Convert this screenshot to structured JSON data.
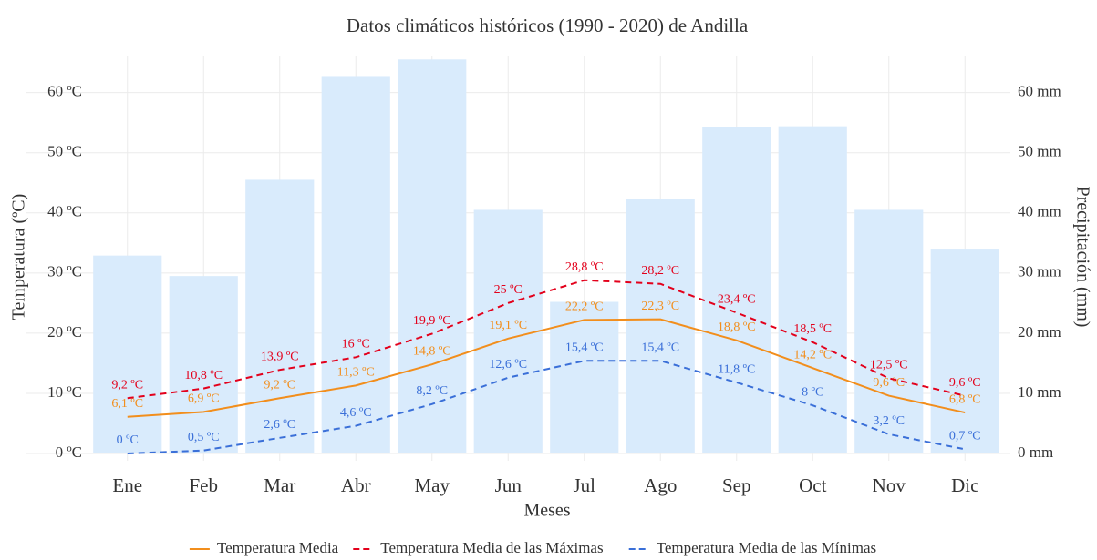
{
  "chart_data": {
    "type": "line",
    "title": "Datos climáticos históricos (1990 - 2020) de Andilla",
    "x_label": "Meses",
    "y_label": "Temperatura (ºC)",
    "y2_label": "Precipitación (mm)",
    "categories": [
      "Ene",
      "Feb",
      "Mar",
      "Abr",
      "May",
      "Jun",
      "Jul",
      "Ago",
      "Sep",
      "Oct",
      "Nov",
      "Dic"
    ],
    "ylim": [
      0,
      66
    ],
    "yticks": [
      {
        "value": 0,
        "label": "0 ºC"
      },
      {
        "value": 10,
        "label": "10 ºC"
      },
      {
        "value": 20,
        "label": "20 ºC"
      },
      {
        "value": 30,
        "label": "30 ºC"
      },
      {
        "value": 40,
        "label": "40 ºC"
      },
      {
        "value": 50,
        "label": "50 ºC"
      },
      {
        "value": 60,
        "label": "60 ºC"
      }
    ],
    "y2lim": [
      0,
      66
    ],
    "y2ticks": [
      {
        "value": 0,
        "label": "0 mm"
      },
      {
        "value": 10,
        "label": "10 mm"
      },
      {
        "value": 20,
        "label": "20 mm"
      },
      {
        "value": 30,
        "label": "30 mm"
      },
      {
        "value": 40,
        "label": "40 mm"
      },
      {
        "value": 50,
        "label": "50 mm"
      },
      {
        "value": 60,
        "label": "60 mm"
      }
    ],
    "grid": true,
    "legend": "bottom",
    "bars": {
      "type": "bar",
      "axis": "y2",
      "color": "#d9ebfc",
      "values": [
        32.9,
        29.5,
        45.5,
        62.6,
        65.5,
        40.5,
        25.2,
        42.3,
        54.2,
        54.4,
        40.5,
        33.9
      ]
    },
    "series": [
      {
        "name": "Temperatura Media",
        "color": "#f28e1c",
        "dash": false,
        "values": [
          6.1,
          6.9,
          9.2,
          11.3,
          14.8,
          19.1,
          22.2,
          22.3,
          18.8,
          14.2,
          9.6,
          6.8
        ],
        "value_labels": [
          "6,1 ºC",
          "6,9 ºC",
          "9,2 ºC",
          "11,3 ºC",
          "14,8 ºC",
          "19,1 ºC",
          "22,2 ºC",
          "22,3 ºC",
          "18,8 ºC",
          "14,2 ºC",
          "9,6 ºC",
          "6,8 ºC"
        ]
      },
      {
        "name": "Temperatura Media de las Máximas",
        "color": "#e3001b",
        "dash": true,
        "values": [
          9.2,
          10.8,
          13.9,
          16,
          19.9,
          25,
          28.8,
          28.2,
          23.4,
          18.5,
          12.5,
          9.6
        ],
        "value_labels": [
          "9,2 ºC",
          "10,8 ºC",
          "13,9 ºC",
          "16 ºC",
          "19,9 ºC",
          "25 ºC",
          "28,8 ºC",
          "28,2 ºC",
          "23,4 ºC",
          "18,5 ºC",
          "12,5 ºC",
          "9,6 ºC"
        ]
      },
      {
        "name": "Temperatura Media de las Mínimas",
        "color": "#3a6fd8",
        "dash": true,
        "values": [
          0,
          0.5,
          2.6,
          4.6,
          8.2,
          12.6,
          15.4,
          15.4,
          11.8,
          8,
          3.2,
          0.7
        ],
        "value_labels": [
          "0 ºC",
          "0,5 ºC",
          "2,6 ºC",
          "4,6 ºC",
          "8,2 ºC",
          "12,6 ºC",
          "15,4 ºC",
          "15,4 ºC",
          "11,8 ºC",
          "8 ºC",
          "3,2 ºC",
          "0,7 ºC"
        ]
      }
    ]
  }
}
